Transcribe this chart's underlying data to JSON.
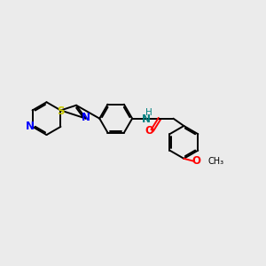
{
  "bg_color": "#ebebeb",
  "bond_color": "#000000",
  "N_color": "#0000ff",
  "S_color": "#cccc00",
  "O_color": "#ff0000",
  "NH_color": "#008080",
  "font_size": 8.5,
  "linewidth": 1.4,
  "figsize": [
    3.0,
    3.0
  ],
  "dpi": 100,
  "xlim": [
    0,
    10
  ],
  "ylim": [
    0,
    10
  ]
}
